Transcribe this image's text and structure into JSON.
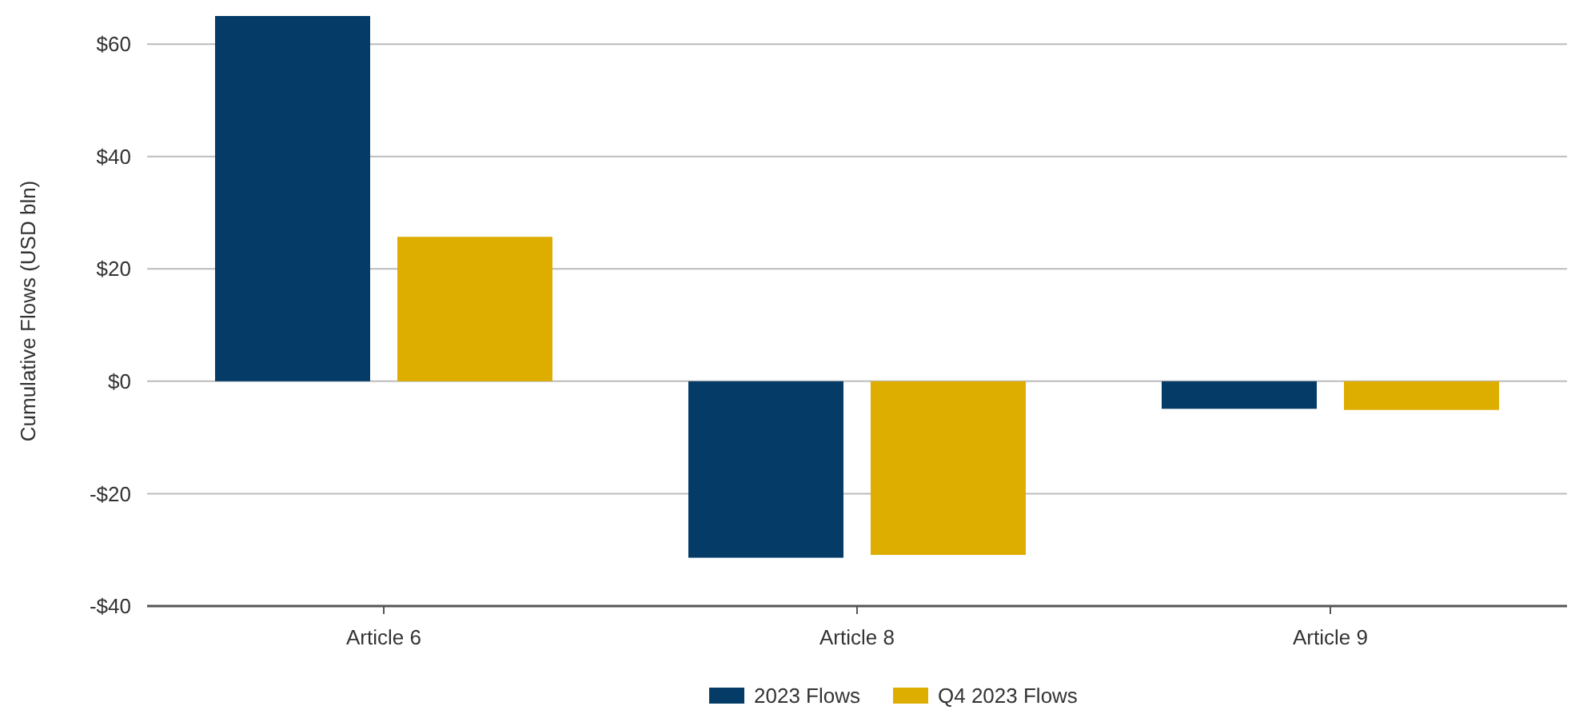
{
  "chart_data": {
    "type": "bar",
    "ylabel": "Cumulative Flows (USD bln)",
    "categories": [
      "Article 6",
      "Article 8",
      "Article 9"
    ],
    "series": [
      {
        "name": "2023 Flows",
        "color": "#053c67",
        "values": [
          65,
          -31.4,
          -4.9
        ]
      },
      {
        "name": "Q4 2023 Flows",
        "color": "#ddad00",
        "values": [
          25.7,
          -30.9,
          -5.1
        ]
      }
    ],
    "ylim": [
      -40,
      65
    ],
    "yticks": [
      {
        "value": -40,
        "label": "-$40"
      },
      {
        "value": -20,
        "label": "-$20"
      },
      {
        "value": 0,
        "label": "$0"
      },
      {
        "value": 20,
        "label": "$20"
      },
      {
        "value": 40,
        "label": "$40"
      },
      {
        "value": 60,
        "label": "$60"
      }
    ],
    "grid": "y",
    "legend": "bottom"
  }
}
